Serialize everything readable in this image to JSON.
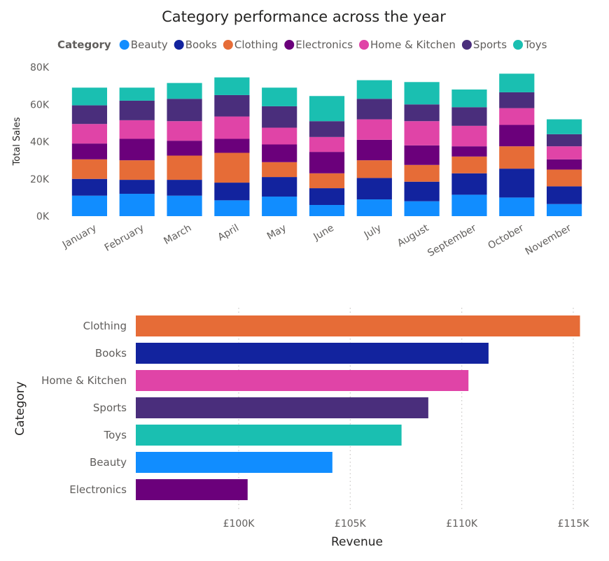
{
  "chart_data": [
    {
      "type": "bar",
      "stacked": true,
      "title": "Category performance across the year",
      "legend_title": "Category",
      "legend_position": "top",
      "ylabel": "Total Sales",
      "xlabel": "",
      "ylim": [
        0,
        80000
      ],
      "yticks": [
        {
          "value": 0,
          "label": "0K"
        },
        {
          "value": 20000,
          "label": "20K"
        },
        {
          "value": 40000,
          "label": "40K"
        },
        {
          "value": 60000,
          "label": "60K"
        },
        {
          "value": 80000,
          "label": "80K"
        }
      ],
      "categories": [
        "January",
        "February",
        "March",
        "April",
        "May",
        "June",
        "July",
        "August",
        "September",
        "October",
        "November"
      ],
      "series": [
        {
          "name": "Beauty",
          "color": "#118dff",
          "values": [
            11000,
            12000,
            11000,
            8500,
            10500,
            6000,
            9000,
            8000,
            11500,
            10000,
            6500
          ]
        },
        {
          "name": "Books",
          "color": "#12239e",
          "values": [
            9000,
            7500,
            8500,
            9500,
            10500,
            9000,
            11500,
            10500,
            11500,
            15500,
            9500
          ]
        },
        {
          "name": "Clothing",
          "color": "#e66c37",
          "values": [
            10500,
            10500,
            13000,
            16000,
            8000,
            8000,
            9500,
            9000,
            9000,
            12000,
            9000
          ]
        },
        {
          "name": "Electronics",
          "color": "#6b007b",
          "values": [
            8500,
            11500,
            8000,
            7500,
            9500,
            11500,
            11000,
            10500,
            5500,
            11500,
            5500
          ]
        },
        {
          "name": "Home & Kitchen",
          "color": "#e044a7",
          "values": [
            10500,
            10000,
            10500,
            12000,
            9000,
            8000,
            11000,
            13000,
            11000,
            9000,
            7000
          ]
        },
        {
          "name": "Sports",
          "color": "#4a2e7c",
          "values": [
            10000,
            10500,
            12000,
            11500,
            11500,
            8500,
            11000,
            9000,
            10000,
            8500,
            6500
          ]
        },
        {
          "name": "Toys",
          "color": "#1abfb1",
          "values": [
            9500,
            7000,
            8500,
            9500,
            10000,
            13500,
            10000,
            12000,
            9500,
            10000,
            8000
          ]
        }
      ]
    },
    {
      "type": "bar",
      "orientation": "horizontal",
      "title": "",
      "xlabel": "Revenue",
      "ylabel": "Category",
      "xlim": [
        95000,
        116000
      ],
      "grid": true,
      "xticks": [
        {
          "value": 100000,
          "label": "£100K"
        },
        {
          "value": 105000,
          "label": "£105K"
        },
        {
          "value": 110000,
          "label": "£110K"
        },
        {
          "value": 115000,
          "label": "£115K"
        }
      ],
      "categories": [
        "Clothing",
        "Books",
        "Home & Kitchen",
        "Sports",
        "Toys",
        "Beauty",
        "Electronics"
      ],
      "values": [
        115300,
        111200,
        110300,
        108500,
        107300,
        104200,
        100400
      ],
      "colors": [
        "#e66c37",
        "#12239e",
        "#e044a7",
        "#4a2e7c",
        "#1abfb1",
        "#118dff",
        "#6b007b"
      ]
    }
  ]
}
